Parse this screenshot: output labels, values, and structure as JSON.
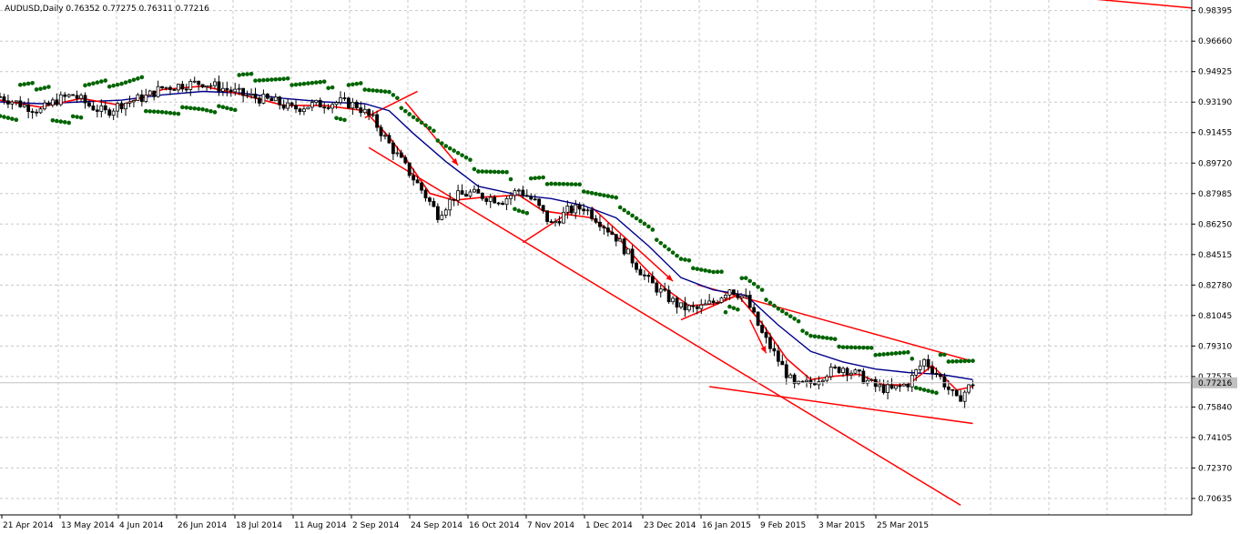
{
  "header": {
    "symbol": "AUDUSD",
    "timeframe": "Daily",
    "ohlc": [
      "0.76352",
      "0.77275",
      "0.76311",
      "0.77216"
    ]
  },
  "current_price_label": "0.77216",
  "colors": {
    "background": "#ffffff",
    "grid": "#c8c8c8",
    "candle": "#000000",
    "trendline": "#ff0000",
    "ma_fast": "#ff0000",
    "ma_slow": "#00008b",
    "sar": "#006400",
    "current_price_box": "#c0c0c0"
  },
  "chart_data": {
    "type": "candlestick",
    "symbol": "AUDUSD",
    "timeframe": "Daily",
    "grid": true,
    "ylim": [
      0.697,
      0.99
    ],
    "y_ticks": [
      "0.98395",
      "0.96660",
      "0.94925",
      "0.93190",
      "0.91455",
      "0.89720",
      "0.87985",
      "0.86250",
      "0.84515",
      "0.82780",
      "0.81045",
      "0.79310",
      "0.77575",
      "0.75840",
      "0.74105",
      "0.72370",
      "0.70635"
    ],
    "x_ticks": [
      "21 Apr 2014",
      "13 May 2014",
      "4 Jun 2014",
      "26 Jun 2014",
      "18 Jul 2014",
      "11 Aug 2014",
      "2 Sep 2014",
      "24 Sep 2014",
      "16 Oct 2014",
      "7 Nov 2014",
      "1 Dec 2014",
      "23 Dec 2014",
      "16 Jan 2015",
      "9 Feb 2015",
      "3 Mar 2015",
      "25 Mar 2015"
    ],
    "close_path": [
      [
        0,
        0.935
      ],
      [
        6,
        0.93
      ],
      [
        10,
        0.927
      ],
      [
        14,
        0.933
      ],
      [
        18,
        0.936
      ],
      [
        22,
        0.93
      ],
      [
        26,
        0.926
      ],
      [
        30,
        0.931
      ],
      [
        36,
        0.935
      ],
      [
        40,
        0.94
      ],
      [
        46,
        0.942
      ],
      [
        50,
        0.943
      ],
      [
        56,
        0.939
      ],
      [
        60,
        0.936
      ],
      [
        64,
        0.934
      ],
      [
        68,
        0.932
      ],
      [
        72,
        0.928
      ],
      [
        76,
        0.93
      ],
      [
        80,
        0.931
      ],
      [
        84,
        0.932
      ],
      [
        88,
        0.93
      ],
      [
        92,
        0.922
      ],
      [
        96,
        0.908
      ],
      [
        100,
        0.895
      ],
      [
        104,
        0.882
      ],
      [
        108,
        0.868
      ],
      [
        112,
        0.878
      ],
      [
        116,
        0.88
      ],
      [
        120,
        0.878
      ],
      [
        124,
        0.876
      ],
      [
        128,
        0.882
      ],
      [
        132,
        0.875
      ],
      [
        136,
        0.862
      ],
      [
        140,
        0.87
      ],
      [
        144,
        0.872
      ],
      [
        148,
        0.864
      ],
      [
        152,
        0.855
      ],
      [
        156,
        0.842
      ],
      [
        160,
        0.83
      ],
      [
        164,
        0.822
      ],
      [
        168,
        0.815
      ],
      [
        172,
        0.814
      ],
      [
        176,
        0.818
      ],
      [
        180,
        0.826
      ],
      [
        184,
        0.82
      ],
      [
        188,
        0.8
      ],
      [
        192,
        0.785
      ],
      [
        196,
        0.77
      ],
      [
        200,
        0.772
      ],
      [
        204,
        0.778
      ],
      [
        208,
        0.781
      ],
      [
        212,
        0.776
      ],
      [
        216,
        0.77
      ],
      [
        220,
        0.768
      ],
      [
        224,
        0.772
      ],
      [
        228,
        0.785
      ],
      [
        232,
        0.775
      ],
      [
        236,
        0.762
      ],
      [
        240,
        0.772
      ]
    ],
    "ma_fast_path": [
      [
        0,
        0.933
      ],
      [
        10,
        0.929
      ],
      [
        20,
        0.934
      ],
      [
        30,
        0.93
      ],
      [
        40,
        0.939
      ],
      [
        50,
        0.941
      ],
      [
        60,
        0.936
      ],
      [
        70,
        0.93
      ],
      [
        80,
        0.93
      ],
      [
        90,
        0.927
      ],
      [
        96,
        0.912
      ],
      [
        100,
        0.9
      ],
      [
        106,
        0.88
      ],
      [
        112,
        0.876
      ],
      [
        120,
        0.878
      ],
      [
        128,
        0.879
      ],
      [
        134,
        0.87
      ],
      [
        140,
        0.868
      ],
      [
        146,
        0.866
      ],
      [
        152,
        0.856
      ],
      [
        158,
        0.84
      ],
      [
        164,
        0.826
      ],
      [
        170,
        0.816
      ],
      [
        176,
        0.817
      ],
      [
        182,
        0.822
      ],
      [
        188,
        0.806
      ],
      [
        194,
        0.786
      ],
      [
        200,
        0.774
      ],
      [
        206,
        0.776
      ],
      [
        212,
        0.777
      ],
      [
        218,
        0.771
      ],
      [
        224,
        0.771
      ],
      [
        230,
        0.782
      ],
      [
        236,
        0.768
      ],
      [
        240,
        0.77
      ]
    ],
    "ma_slow_path": [
      [
        0,
        0.932
      ],
      [
        10,
        0.931
      ],
      [
        20,
        0.932
      ],
      [
        30,
        0.933
      ],
      [
        40,
        0.936
      ],
      [
        50,
        0.938
      ],
      [
        60,
        0.937
      ],
      [
        70,
        0.934
      ],
      [
        80,
        0.932
      ],
      [
        90,
        0.931
      ],
      [
        96,
        0.927
      ],
      [
        102,
        0.914
      ],
      [
        110,
        0.898
      ],
      [
        118,
        0.884
      ],
      [
        128,
        0.879
      ],
      [
        136,
        0.877
      ],
      [
        144,
        0.873
      ],
      [
        152,
        0.866
      ],
      [
        160,
        0.85
      ],
      [
        168,
        0.832
      ],
      [
        176,
        0.825
      ],
      [
        184,
        0.822
      ],
      [
        192,
        0.805
      ],
      [
        200,
        0.79
      ],
      [
        208,
        0.784
      ],
      [
        216,
        0.78
      ],
      [
        224,
        0.778
      ],
      [
        232,
        0.777
      ],
      [
        240,
        0.774
      ]
    ]
  },
  "drawings": {
    "trendlines": [
      {
        "id": "channel-lower-main",
        "from": [
          91,
          0.906
        ],
        "to": [
          237,
          0.7025
        ]
      },
      {
        "id": "wedge-upper",
        "from": [
          172,
          0.828
        ],
        "to": [
          239,
          0.785
        ]
      },
      {
        "id": "wedge-lower",
        "from": [
          175,
          0.77
        ],
        "to": [
          240,
          0.749
        ]
      },
      {
        "id": "top-right-line",
        "from": [
          229,
          0.999
        ],
        "to": [
          294,
          0.9855
        ]
      },
      {
        "id": "short-1",
        "from": [
          90,
          0.923
        ],
        "to": [
          103,
          0.938
        ]
      },
      {
        "id": "short-2",
        "from": [
          129,
          0.852
        ],
        "to": [
          143,
          0.873
        ]
      },
      {
        "id": "short-3",
        "from": [
          168,
          0.808
        ],
        "to": [
          183,
          0.823
        ]
      }
    ],
    "arrows": [
      {
        "id": "arrow-1",
        "from": [
          100,
          0.932
        ],
        "to": [
          113,
          0.896
        ]
      },
      {
        "id": "arrow-2",
        "from": [
          146,
          0.872
        ],
        "to": [
          166,
          0.83
        ]
      },
      {
        "id": "arrow-3",
        "from": [
          185,
          0.808
        ],
        "to": [
          189,
          0.789
        ]
      }
    ]
  }
}
